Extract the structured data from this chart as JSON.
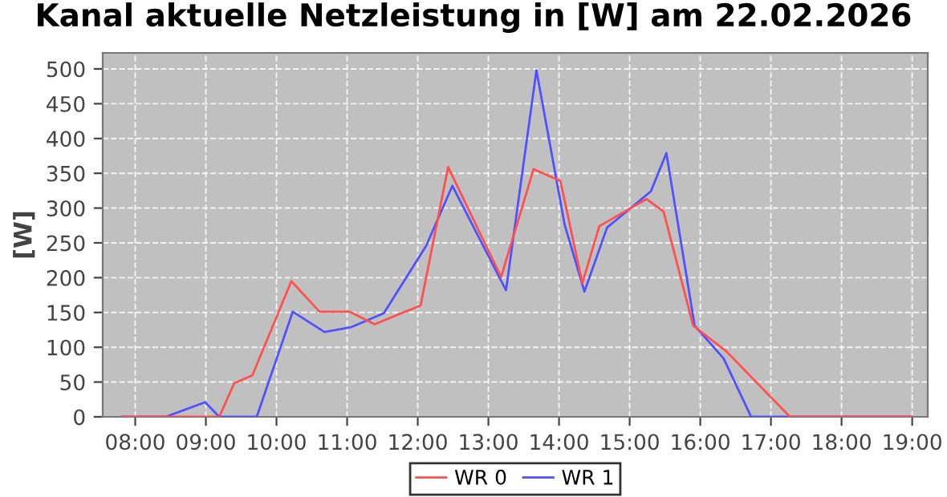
{
  "chart_data": {
    "type": "line",
    "title": "Kanal aktuelle Netzleistung in [W] am 22.02.2026",
    "ylabel": "[W]",
    "xlim": [
      7.54,
      19.22
    ],
    "ylim": [
      0,
      523
    ],
    "xticks": [
      {
        "value": 8,
        "label": "08:00"
      },
      {
        "value": 9,
        "label": "09:00"
      },
      {
        "value": 10,
        "label": "10:00"
      },
      {
        "value": 11,
        "label": "11:00"
      },
      {
        "value": 12,
        "label": "12:00"
      },
      {
        "value": 13,
        "label": "13:00"
      },
      {
        "value": 14,
        "label": "14:00"
      },
      {
        "value": 15,
        "label": "15:00"
      },
      {
        "value": 16,
        "label": "16:00"
      },
      {
        "value": 17,
        "label": "17:00"
      },
      {
        "value": 18,
        "label": "18:00"
      },
      {
        "value": 19,
        "label": "19:00"
      }
    ],
    "yticks": [
      0,
      50,
      100,
      150,
      200,
      250,
      300,
      350,
      400,
      450,
      500
    ],
    "grid": true,
    "legend": "bottom",
    "series": [
      {
        "name": "WR 0",
        "color": "#ff5050",
        "x": [
          7.81,
          9.19,
          9.4,
          9.66,
          10.21,
          10.61,
          11.04,
          11.39,
          12.04,
          12.43,
          13.18,
          13.64,
          14.02,
          14.33,
          14.57,
          15.24,
          15.48,
          15.9,
          16.37,
          17.27,
          19.0
        ],
        "values": [
          0,
          0,
          48,
          60,
          195,
          151,
          151,
          133,
          160,
          359,
          201,
          356,
          339,
          192,
          274,
          313,
          295,
          131,
          94,
          0,
          0
        ]
      },
      {
        "name": "WR 1",
        "color": "#5050ff",
        "x": [
          7.81,
          8.43,
          8.99,
          9.19,
          9.72,
          10.23,
          10.68,
          11.06,
          11.52,
          12.12,
          12.49,
          13.25,
          13.68,
          14.08,
          14.36,
          14.68,
          15.3,
          15.52,
          15.92,
          16.33,
          16.72,
          19.0
        ],
        "values": [
          0,
          0,
          21,
          0,
          0,
          151,
          122,
          129,
          149,
          246,
          332,
          182,
          498,
          276,
          180,
          272,
          324,
          379,
          131,
          84,
          0,
          0
        ]
      }
    ]
  }
}
